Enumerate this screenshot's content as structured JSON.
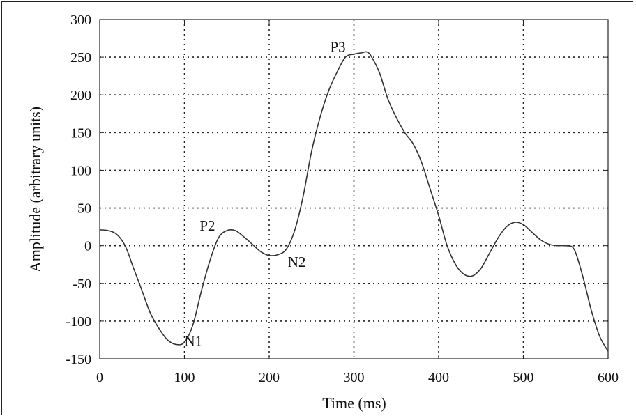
{
  "chart_data": {
    "type": "line",
    "title": "",
    "xlabel": "Time (ms)",
    "ylabel": "Amplitude (arbitrary units)",
    "xlim": [
      0,
      600
    ],
    "ylim": [
      -150,
      300
    ],
    "xticks": [
      0,
      100,
      200,
      300,
      400,
      500,
      600
    ],
    "yticks": [
      -150,
      -100,
      -50,
      0,
      50,
      100,
      150,
      200,
      250,
      300
    ],
    "xtick_labels": [
      "0",
      "100",
      "200",
      "300",
      "400",
      "500",
      "600"
    ],
    "ytick_labels": [
      "-150",
      "-100",
      "-50",
      "0",
      "50",
      "100",
      "150",
      "200",
      "250",
      "300"
    ],
    "grid": true,
    "series": [
      {
        "color": "#333333",
        "x": [
          0,
          10,
          20,
          30,
          40,
          50,
          60,
          70,
          80,
          90,
          100,
          110,
          120,
          130,
          140,
          150,
          160,
          170,
          180,
          190,
          200,
          210,
          220,
          230,
          240,
          250,
          260,
          270,
          280,
          290,
          300,
          310,
          315,
          320,
          330,
          340,
          350,
          360,
          370,
          380,
          390,
          400,
          410,
          420,
          430,
          440,
          450,
          460,
          470,
          480,
          490,
          500,
          510,
          520,
          530,
          540,
          550,
          560,
          570,
          580,
          590,
          600
        ],
        "y": [
          21,
          20,
          15,
          0,
          -30,
          -60,
          -90,
          -110,
          -125,
          -131,
          -128,
          -105,
          -60,
          -20,
          10,
          20,
          20,
          12,
          2,
          -8,
          -13,
          -12,
          -5,
          20,
          65,
          125,
          170,
          205,
          230,
          250,
          254,
          256,
          257,
          252,
          230,
          195,
          170,
          150,
          135,
          110,
          75,
          40,
          0,
          -25,
          -38,
          -40,
          -30,
          -10,
          10,
          25,
          31,
          28,
          18,
          8,
          2,
          0,
          0,
          -5,
          -40,
          -85,
          -120,
          -140
        ]
      }
    ],
    "annotations": [
      {
        "text": "N1",
        "x": 100,
        "y": -133
      },
      {
        "text": "P2",
        "x": 118,
        "y": 20
      },
      {
        "text": "N2",
        "x": 222,
        "y": -28
      },
      {
        "text": "P3",
        "x": 272,
        "y": 257
      }
    ]
  }
}
